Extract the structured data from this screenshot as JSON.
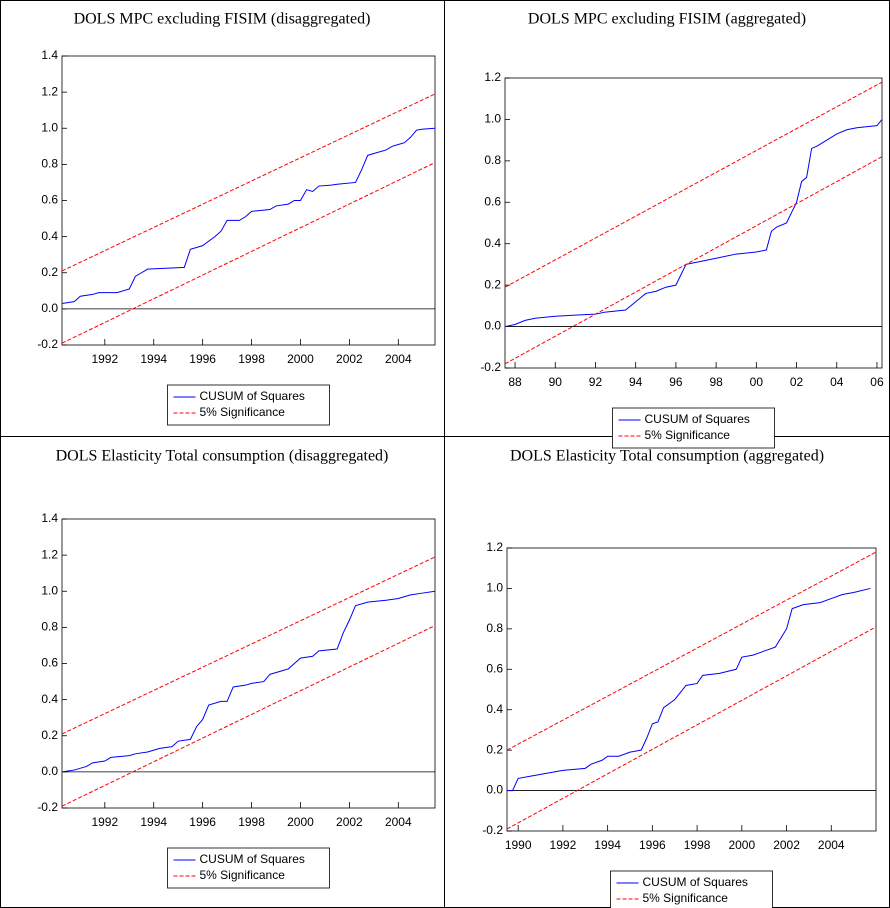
{
  "chart_data": [
    {
      "type": "line",
      "title": "DOLS MPC excluding FISIM (disaggregated)",
      "legend": "bottom",
      "xlim": [
        1990.25,
        2005.5
      ],
      "xticks": [
        1992,
        1994,
        1996,
        1998,
        2000,
        2002,
        2004
      ],
      "ylim": [
        -0.2,
        1.4
      ],
      "yticks": [
        -0.2,
        {
          "value": 0,
          "label": "0.0"
        },
        0.2,
        0.4,
        0.6,
        0.8,
        {
          "value": 1,
          "label": "1.0"
        },
        1.2,
        1.4
      ],
      "series": [
        {
          "name": "CUSUM of Squares",
          "color": "#0000ff",
          "x": [
            1990.25,
            1990.75,
            1991.0,
            1991.5,
            1991.75,
            1992.5,
            1993.0,
            1993.25,
            1993.5,
            1993.75,
            1994.5,
            1995.25,
            1995.5,
            1995.75,
            1996.0,
            1996.5,
            1996.75,
            1997.0,
            1997.5,
            1997.75,
            1998.0,
            1998.75,
            1999.0,
            1999.5,
            1999.75,
            2000.0,
            2000.25,
            2000.5,
            2000.75,
            2001.25,
            2001.5,
            2002.25,
            2002.5,
            2002.75,
            2003.0,
            2003.5,
            2003.75,
            2004.0,
            2004.25,
            2004.5,
            2004.75,
            2005.0,
            2005.5
          ],
          "values": [
            0.03,
            0.04,
            0.07,
            0.08,
            0.09,
            0.09,
            0.11,
            0.18,
            0.2,
            0.22,
            0.225,
            0.23,
            0.33,
            0.34,
            0.35,
            0.4,
            0.43,
            0.49,
            0.49,
            0.51,
            0.54,
            0.55,
            0.57,
            0.58,
            0.6,
            0.6,
            0.66,
            0.65,
            0.68,
            0.685,
            0.69,
            0.7,
            0.77,
            0.85,
            0.86,
            0.88,
            0.9,
            0.91,
            0.92,
            0.95,
            0.99,
            0.995,
            1.0
          ]
        },
        {
          "name": "5% Significance",
          "color": "#ff0000",
          "x": [
            1990.25,
            2005.5
          ],
          "values": [
            0.21,
            1.19
          ],
          "lower": [
            -0.19,
            0.81
          ]
        }
      ]
    },
    {
      "type": "line",
      "title": "DOLS MPC excluding FISIM (aggregated)",
      "legend": "bottom",
      "xlim": [
        1987.5,
        2006.25
      ],
      "xticks": [
        {
          "value": 1988,
          "label": "88"
        },
        {
          "value": 1990,
          "label": "90"
        },
        {
          "value": 1992,
          "label": "92"
        },
        {
          "value": 1994,
          "label": "94"
        },
        {
          "value": 1996,
          "label": "96"
        },
        {
          "value": 1998,
          "label": "98"
        },
        {
          "value": 2000,
          "label": "00"
        },
        {
          "value": 2002,
          "label": "02"
        },
        {
          "value": 2004,
          "label": "04"
        },
        {
          "value": 2006,
          "label": "06"
        }
      ],
      "ylim": [
        -0.2,
        1.2
      ],
      "yticks": [
        -0.2,
        {
          "value": 0,
          "label": "0.0"
        },
        0.2,
        0.4,
        0.6,
        0.8,
        {
          "value": 1,
          "label": "1.0"
        },
        1.2
      ],
      "series": [
        {
          "name": "CUSUM of Squares",
          "color": "#0000ff",
          "x": [
            1987.5,
            1988.0,
            1988.5,
            1989.0,
            1989.5,
            1990.0,
            1991.0,
            1992.0,
            1992.5,
            1993.5,
            1994.0,
            1994.5,
            1995.0,
            1995.5,
            1996.0,
            1996.5,
            1997.0,
            1998.0,
            1999.0,
            2000.0,
            2000.5,
            2000.75,
            2001.0,
            2001.5,
            2002.0,
            2002.25,
            2002.5,
            2002.75,
            2003.0,
            2003.5,
            2004.0,
            2004.5,
            2005.0,
            2006.0,
            2006.25
          ],
          "values": [
            0.0,
            0.01,
            0.03,
            0.04,
            0.045,
            0.05,
            0.055,
            0.06,
            0.07,
            0.08,
            0.12,
            0.16,
            0.17,
            0.19,
            0.2,
            0.3,
            0.31,
            0.33,
            0.35,
            0.36,
            0.37,
            0.46,
            0.48,
            0.5,
            0.6,
            0.7,
            0.72,
            0.86,
            0.87,
            0.9,
            0.93,
            0.95,
            0.96,
            0.97,
            1.0
          ]
        },
        {
          "name": "5% Significance",
          "color": "#ff0000",
          "x": [
            1987.5,
            2006.25
          ],
          "values": [
            0.19,
            1.18
          ],
          "lower": [
            -0.18,
            0.82
          ]
        }
      ]
    },
    {
      "type": "line",
      "title": "DOLS Elasticity Total consumption (disaggregated)",
      "legend": "bottom",
      "xlim": [
        1990.25,
        2005.5
      ],
      "xticks": [
        1992,
        1994,
        1996,
        1998,
        2000,
        2002,
        2004
      ],
      "ylim": [
        -0.2,
        1.4
      ],
      "yticks": [
        -0.2,
        {
          "value": 0,
          "label": "0.0"
        },
        0.2,
        0.4,
        0.6,
        0.8,
        {
          "value": 1,
          "label": "1.0"
        },
        1.2,
        1.4
      ],
      "series": [
        {
          "name": "CUSUM of Squares",
          "color": "#0000ff",
          "x": [
            1990.25,
            1990.75,
            1991.25,
            1991.5,
            1992.0,
            1992.25,
            1993.0,
            1993.25,
            1993.75,
            1994.25,
            1994.75,
            1995.0,
            1995.5,
            1995.75,
            1996.0,
            1996.25,
            1996.75,
            1997.0,
            1997.25,
            1997.75,
            1998.0,
            1998.5,
            1998.75,
            1999.25,
            1999.5,
            2000.0,
            2000.5,
            2000.75,
            2001.5,
            2001.75,
            2002.0,
            2002.25,
            2002.75,
            2003.5,
            2004.0,
            2004.5,
            2005.0,
            2005.5
          ],
          "values": [
            0.0,
            0.01,
            0.03,
            0.05,
            0.06,
            0.08,
            0.09,
            0.1,
            0.11,
            0.13,
            0.14,
            0.17,
            0.18,
            0.25,
            0.29,
            0.37,
            0.39,
            0.39,
            0.47,
            0.48,
            0.49,
            0.5,
            0.54,
            0.56,
            0.57,
            0.63,
            0.64,
            0.67,
            0.68,
            0.77,
            0.84,
            0.92,
            0.94,
            0.95,
            0.96,
            0.98,
            0.99,
            1.0
          ]
        },
        {
          "name": "5% Significance",
          "color": "#ff0000",
          "x": [
            1990.25,
            2005.5
          ],
          "values": [
            0.21,
            1.19
          ],
          "lower": [
            -0.19,
            0.81
          ]
        }
      ]
    },
    {
      "type": "line",
      "title": "DOLS Elasticity Total consumption (aggregated)",
      "legend": "bottom",
      "xlim": [
        1989.5,
        2006.0
      ],
      "xticks": [
        1990,
        1992,
        1994,
        1996,
        1998,
        2000,
        2002,
        2004
      ],
      "ylim": [
        -0.2,
        1.2
      ],
      "yticks": [
        -0.2,
        {
          "value": 0,
          "label": "0.0"
        },
        0.2,
        0.4,
        0.6,
        0.8,
        {
          "value": 1,
          "label": "1.0"
        },
        1.2
      ],
      "series": [
        {
          "name": "CUSUM of Squares",
          "color": "#0000ff",
          "x": [
            1989.5,
            1989.75,
            1990.0,
            1990.5,
            1991.0,
            1991.5,
            1992.0,
            1993.0,
            1993.25,
            1993.75,
            1994.0,
            1994.5,
            1995.0,
            1995.5,
            1995.75,
            1996.0,
            1996.25,
            1996.5,
            1997.0,
            1997.5,
            1998.0,
            1998.25,
            1999.0,
            1999.75,
            2000.0,
            2000.5,
            2001.0,
            2001.5,
            2002.0,
            2002.25,
            2002.75,
            2003.5,
            2004.0,
            2004.5,
            2005.0,
            2005.75
          ],
          "values": [
            0.0,
            0.0,
            0.06,
            0.07,
            0.08,
            0.09,
            0.1,
            0.11,
            0.13,
            0.15,
            0.17,
            0.17,
            0.19,
            0.2,
            0.26,
            0.33,
            0.34,
            0.41,
            0.45,
            0.52,
            0.53,
            0.57,
            0.58,
            0.6,
            0.66,
            0.67,
            0.69,
            0.71,
            0.8,
            0.9,
            0.92,
            0.93,
            0.95,
            0.97,
            0.98,
            1.0
          ]
        },
        {
          "name": "5% Significance",
          "color": "#ff0000",
          "x": [
            1989.5,
            2006.0
          ],
          "values": [
            0.2,
            1.18
          ],
          "lower": [
            -0.19,
            0.81
          ]
        }
      ]
    }
  ]
}
